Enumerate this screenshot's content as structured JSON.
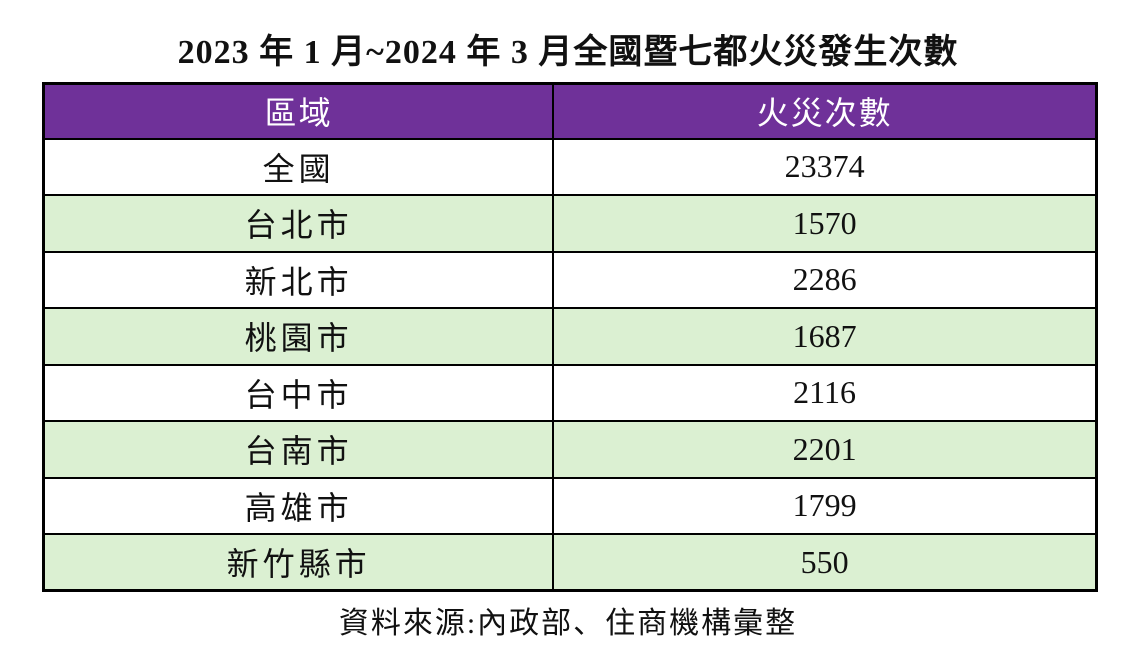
{
  "chart_data": {
    "type": "table",
    "title": "2023 年 1 月~2024 年 3 月全國暨七都火災發生次數",
    "columns": [
      "區域",
      "火災次數"
    ],
    "categories": [
      "全國",
      "台北市",
      "新北市",
      "桃園市",
      "台中市",
      "台南市",
      "高雄市",
      "新竹縣市"
    ],
    "values": [
      23374,
      1570,
      2286,
      1687,
      2116,
      2201,
      1799,
      550
    ],
    "source_note": "資料來源:內政部、住商機構彙整",
    "layout": {
      "header_position": "top",
      "zebra_striping": true,
      "grid": true
    }
  },
  "colors": {
    "header_bg": "#6F3199",
    "header_text": "#FFFFFF",
    "row_alt_bg": "#DBF0D2",
    "row_bg": "#FFFFFF",
    "border": "#000000",
    "text": "#111111"
  }
}
